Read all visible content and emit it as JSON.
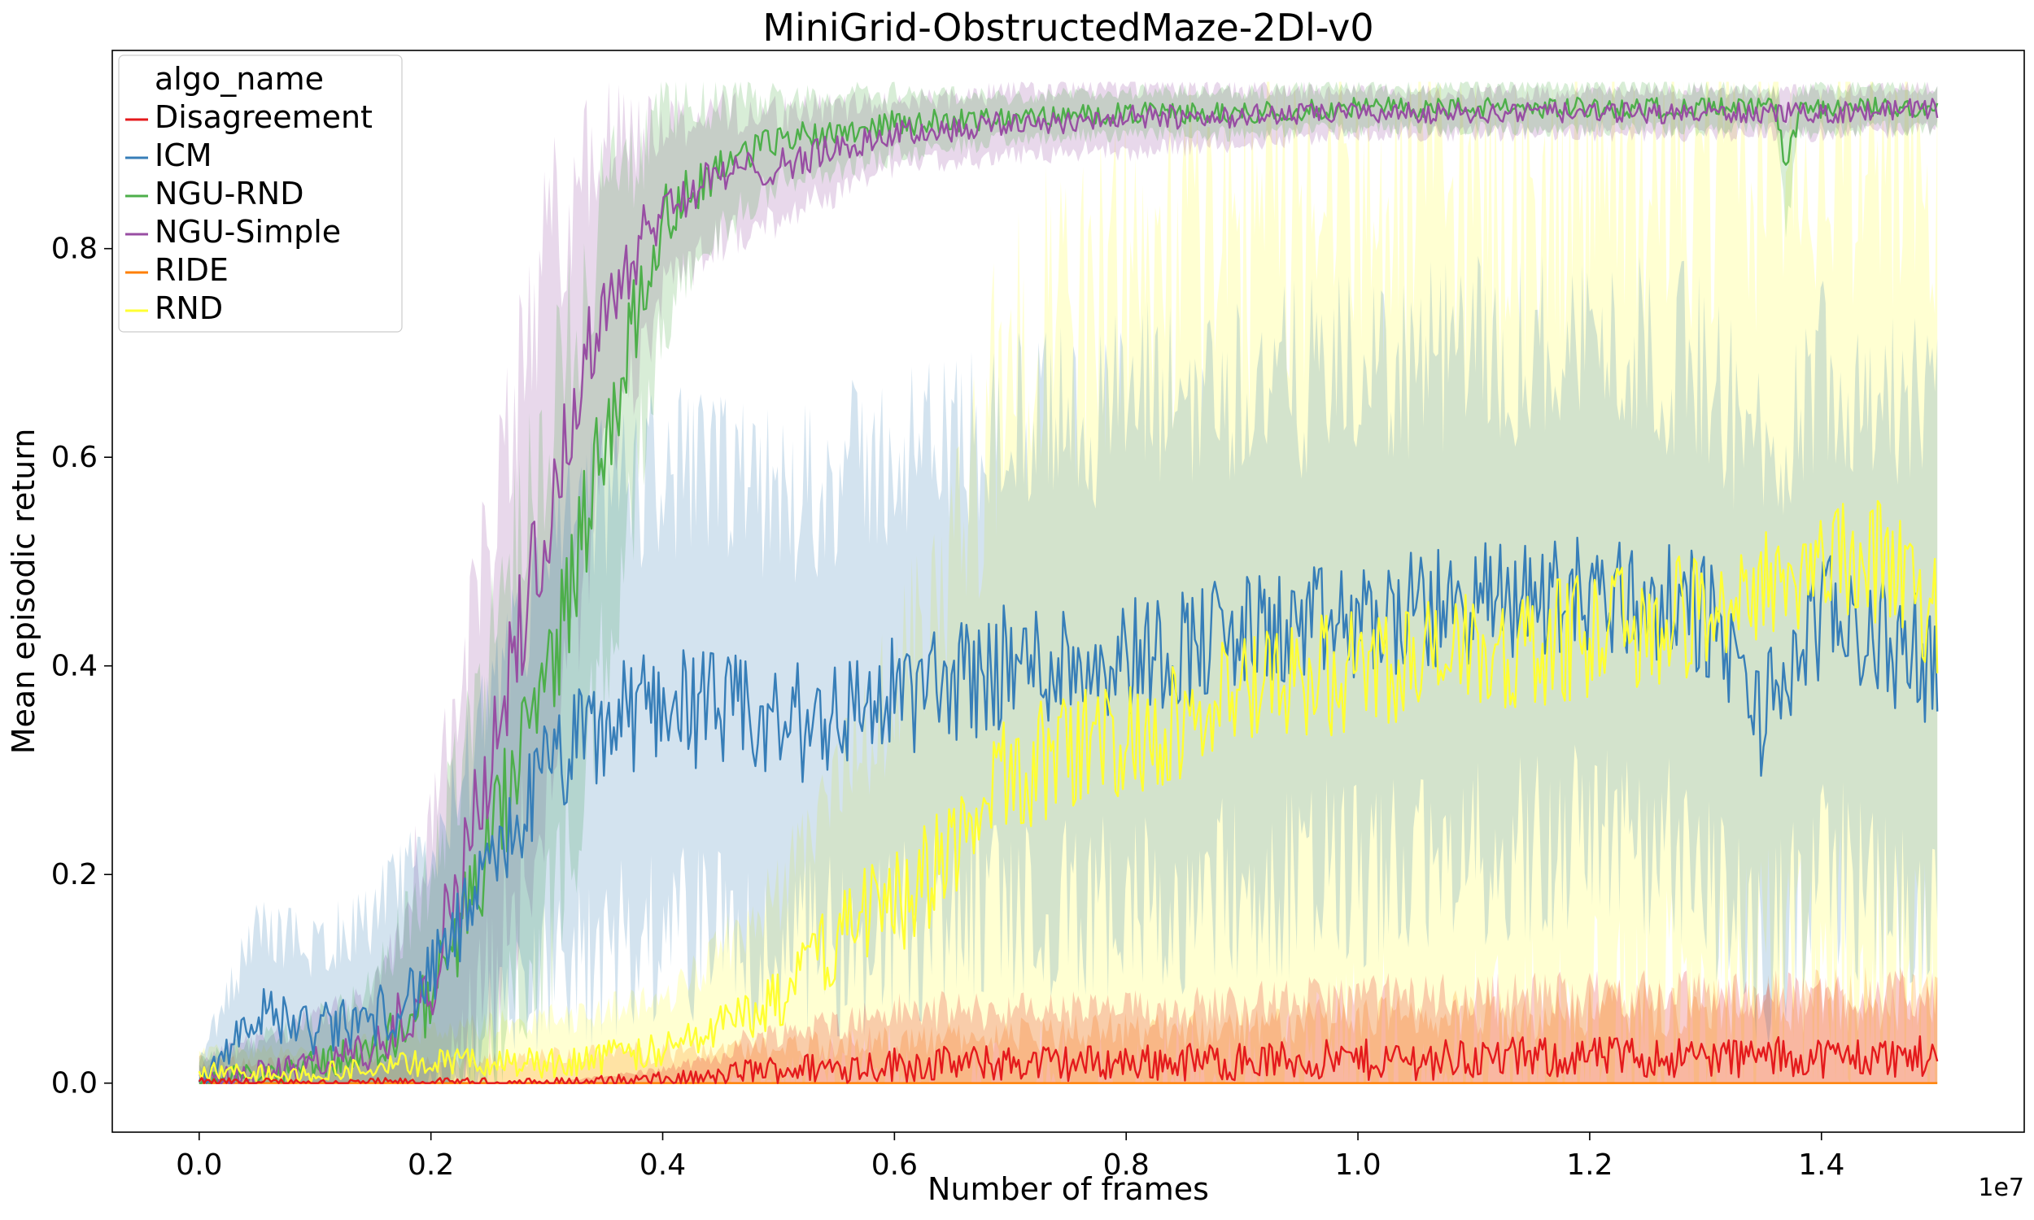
{
  "chart_data": {
    "type": "line",
    "title": "MiniGrid-ObstructedMaze-2Dl-v0",
    "xlabel": "Number of frames",
    "ylabel": "Mean episodic return",
    "x_offset_label": "1e7",
    "xlim": [
      -0.075,
      1.575
    ],
    "ylim": [
      -0.047,
      0.99
    ],
    "x_ticks": [
      0.0,
      0.2,
      0.4,
      0.6,
      0.8,
      1.0,
      1.2,
      1.4
    ],
    "x_tick_labels": [
      "0.0",
      "0.2",
      "0.4",
      "0.6",
      "0.8",
      "1.0",
      "1.2",
      "1.4"
    ],
    "y_ticks": [
      0.0,
      0.2,
      0.4,
      0.6,
      0.8
    ],
    "y_tick_labels": [
      "0.0",
      "0.2",
      "0.4",
      "0.6",
      "0.8"
    ],
    "grid": false,
    "legend": {
      "title": "algo_name",
      "placement": "top-left"
    },
    "series": [
      {
        "name": "Disagreement",
        "color": "#e41a1c",
        "x": [
          0.0,
          0.1,
          0.2,
          0.3,
          0.4,
          0.45,
          0.47,
          0.6,
          0.8,
          1.0,
          1.2,
          1.4,
          1.5
        ],
        "y": [
          0.0,
          0.0,
          0.0,
          0.0,
          0.003,
          0.005,
          0.012,
          0.018,
          0.02,
          0.022,
          0.025,
          0.025,
          0.025
        ],
        "band": [
          0.0,
          0.0,
          0.0,
          0.0,
          0.01,
          0.02,
          0.03,
          0.05,
          0.05,
          0.06,
          0.06,
          0.06,
          0.06
        ]
      },
      {
        "name": "ICM",
        "color": "#377eb8",
        "x": [
          0.0,
          0.05,
          0.1,
          0.15,
          0.2,
          0.25,
          0.3,
          0.35,
          0.4,
          0.5,
          0.6,
          0.7,
          0.8,
          0.9,
          1.0,
          1.1,
          1.2,
          1.3,
          1.35,
          1.4,
          1.5
        ],
        "y": [
          0.0,
          0.07,
          0.05,
          0.06,
          0.1,
          0.2,
          0.3,
          0.34,
          0.37,
          0.34,
          0.37,
          0.4,
          0.41,
          0.43,
          0.44,
          0.46,
          0.47,
          0.45,
          0.35,
          0.45,
          0.4
        ],
        "band": [
          0.02,
          0.08,
          0.08,
          0.1,
          0.12,
          0.15,
          0.2,
          0.22,
          0.22,
          0.22,
          0.23,
          0.23,
          0.24,
          0.24,
          0.24,
          0.24,
          0.24,
          0.24,
          0.24,
          0.24,
          0.24
        ]
      },
      {
        "name": "NGU-RND",
        "color": "#4daf4a",
        "x": [
          0.0,
          0.1,
          0.15,
          0.2,
          0.25,
          0.3,
          0.35,
          0.4,
          0.45,
          0.5,
          0.6,
          0.7,
          0.8,
          0.9,
          1.0,
          1.2,
          1.36,
          1.37,
          1.38,
          1.4,
          1.5
        ],
        "y": [
          0.0,
          0.02,
          0.03,
          0.08,
          0.22,
          0.38,
          0.62,
          0.83,
          0.88,
          0.905,
          0.92,
          0.925,
          0.93,
          0.93,
          0.935,
          0.935,
          0.935,
          0.87,
          0.93,
          0.935,
          0.935
        ],
        "band": [
          0.02,
          0.04,
          0.06,
          0.12,
          0.2,
          0.25,
          0.22,
          0.1,
          0.06,
          0.04,
          0.03,
          0.02,
          0.02,
          0.02,
          0.02,
          0.02,
          0.02,
          0.05,
          0.02,
          0.02,
          0.02
        ]
      },
      {
        "name": "NGU-Simple",
        "color": "#984ea3",
        "x": [
          0.0,
          0.1,
          0.15,
          0.2,
          0.25,
          0.3,
          0.35,
          0.4,
          0.45,
          0.5,
          0.6,
          0.7,
          0.8,
          1.0,
          1.2,
          1.4,
          1.5
        ],
        "y": [
          0.0,
          0.02,
          0.03,
          0.1,
          0.3,
          0.55,
          0.75,
          0.84,
          0.87,
          0.88,
          0.91,
          0.92,
          0.925,
          0.93,
          0.93,
          0.93,
          0.935
        ],
        "band": [
          0.02,
          0.04,
          0.06,
          0.15,
          0.22,
          0.25,
          0.16,
          0.08,
          0.06,
          0.05,
          0.03,
          0.03,
          0.03,
          0.02,
          0.02,
          0.02,
          0.02
        ]
      },
      {
        "name": "RIDE",
        "color": "#ff7f00",
        "x": [
          0.0,
          0.2,
          0.4,
          0.6,
          0.8,
          1.0,
          1.2,
          1.4,
          1.5
        ],
        "y": [
          0.0,
          0.0,
          0.0,
          0.0,
          0.0,
          0.0,
          0.0,
          0.0,
          0.0
        ],
        "band": [
          0.02,
          0.02,
          0.03,
          0.04,
          0.05,
          0.06,
          0.07,
          0.08,
          0.08
        ]
      },
      {
        "name": "RND",
        "color": "#ffff33",
        "x": [
          0.0,
          0.1,
          0.2,
          0.3,
          0.4,
          0.5,
          0.55,
          0.6,
          0.65,
          0.7,
          0.8,
          0.9,
          1.0,
          1.1,
          1.2,
          1.3,
          1.35,
          1.4,
          1.45,
          1.5
        ],
        "y": [
          0.01,
          0.01,
          0.02,
          0.02,
          0.03,
          0.08,
          0.14,
          0.18,
          0.22,
          0.3,
          0.33,
          0.37,
          0.4,
          0.41,
          0.43,
          0.45,
          0.48,
          0.5,
          0.5,
          0.45
        ],
        "band": [
          0.02,
          0.02,
          0.03,
          0.04,
          0.05,
          0.1,
          0.15,
          0.2,
          0.3,
          0.4,
          0.45,
          0.45,
          0.45,
          0.45,
          0.45,
          0.42,
          0.4,
          0.4,
          0.4,
          0.4
        ]
      }
    ]
  }
}
